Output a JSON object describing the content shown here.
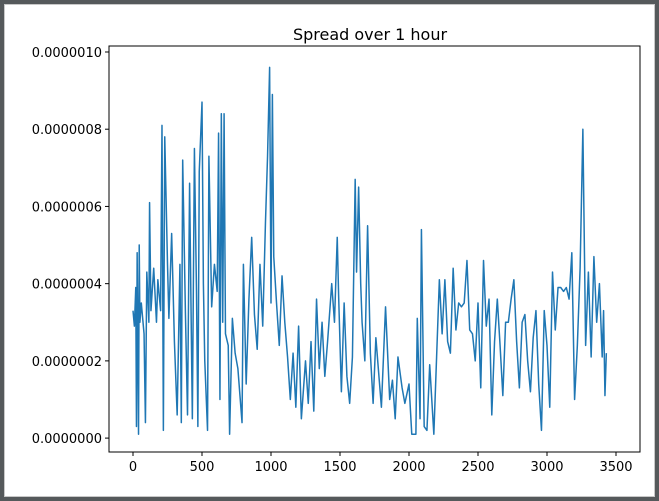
{
  "chart_data": {
    "type": "line",
    "title": "Spread over 1 hour",
    "color": "#1f77b4",
    "x": [
      0,
      10,
      20,
      25,
      30,
      40,
      45,
      50,
      60,
      80,
      90,
      100,
      115,
      120,
      130,
      150,
      170,
      180,
      200,
      210,
      220,
      230,
      250,
      260,
      280,
      300,
      320,
      340,
      350,
      360,
      380,
      395,
      410,
      420,
      430,
      445,
      460,
      470,
      480,
      500,
      510,
      520,
      540,
      550,
      570,
      590,
      610,
      620,
      630,
      640,
      650,
      660,
      670,
      690,
      700,
      720,
      740,
      760,
      790,
      800,
      820,
      840,
      860,
      880,
      900,
      920,
      940,
      960,
      975,
      990,
      1000,
      1010,
      1020,
      1040,
      1060,
      1080,
      1100,
      1120,
      1140,
      1160,
      1180,
      1200,
      1220,
      1250,
      1270,
      1290,
      1310,
      1330,
      1350,
      1370,
      1390,
      1410,
      1440,
      1460,
      1480,
      1490,
      1510,
      1530,
      1550,
      1570,
      1590,
      1610,
      1620,
      1635,
      1650,
      1660,
      1680,
      1700,
      1720,
      1740,
      1760,
      1800,
      1830,
      1860,
      1880,
      1900,
      1920,
      1950,
      1970,
      2000,
      2020,
      2050,
      2060,
      2080,
      2090,
      2110,
      2130,
      2150,
      2180,
      2200,
      2220,
      2240,
      2260,
      2280,
      2300,
      2320,
      2340,
      2360,
      2380,
      2400,
      2420,
      2440,
      2460,
      2480,
      2500,
      2520,
      2540,
      2560,
      2580,
      2600,
      2620,
      2640,
      2660,
      2680,
      2700,
      2720,
      2740,
      2760,
      2780,
      2800,
      2820,
      2840,
      2860,
      2880,
      2900,
      2920,
      2940,
      2960,
      2980,
      3000,
      3020,
      3040,
      3060,
      3080,
      3100,
      3120,
      3140,
      3160,
      3180,
      3200,
      3220,
      3240,
      3260,
      3280,
      3300,
      3320,
      3340,
      3360,
      3380,
      3400,
      3410,
      3420,
      3430
    ],
    "values": [
      3.3e-07,
      2.9e-07,
      3.9e-07,
      3e-08,
      4.8e-07,
      1e-08,
      5e-07,
      3e-07,
      3.5e-07,
      2.7e-07,
      4e-08,
      4.3e-07,
      3e-07,
      6.1e-07,
      3.3e-07,
      4.4e-07,
      3e-07,
      4.1e-07,
      3.3e-07,
      8.1e-07,
      2e-08,
      7.8e-07,
      4.5e-07,
      3.1e-07,
      5.3e-07,
      2.5e-07,
      6e-08,
      4.5e-07,
      4e-08,
      7.2e-07,
      3.2e-07,
      6e-08,
      6.6e-07,
      3.5e-07,
      5e-08,
      7.5e-07,
      3.8e-07,
      3e-08,
      6.9e-07,
      8.7e-07,
      4e-07,
      2e-07,
      2e-08,
      7.3e-07,
      3.4e-07,
      4.5e-07,
      3.8e-07,
      7.9e-07,
      1e-07,
      8.4e-07,
      3e-07,
      8.4e-07,
      2.7e-07,
      2.4e-07,
      1e-08,
      3.1e-07,
      2.2e-07,
      1.8e-07,
      4e-08,
      4.5e-07,
      1.4e-07,
      3.6e-07,
      5.2e-07,
      3.2e-07,
      2.3e-07,
      4.5e-07,
      2.9e-07,
      5.6e-07,
      7.3e-07,
      9.6e-07,
      3.5e-07,
      8.9e-07,
      4.7e-07,
      3.5e-07,
      2.4e-07,
      4.2e-07,
      3e-07,
      2.1e-07,
      1e-07,
      2.2e-07,
      8e-08,
      2.9e-07,
      5e-08,
      2e-07,
      9e-08,
      2.5e-07,
      7e-08,
      3.6e-07,
      1.8e-07,
      3e-07,
      1.6e-07,
      2.5e-07,
      4e-07,
      3e-07,
      5.2e-07,
      3.7e-07,
      1.2e-07,
      3.5e-07,
      1.6e-07,
      9e-08,
      2.1e-07,
      6.7e-07,
      4.3e-07,
      6.5e-07,
      4e-07,
      3e-07,
      2e-07,
      5.5e-07,
      2.2e-07,
      9e-08,
      2.6e-07,
      8e-08,
      3.4e-07,
      1e-07,
      1.5e-07,
      5e-08,
      2.1e-07,
      1.3e-07,
      9e-08,
      1.4e-07,
      1e-08,
      1e-08,
      3.1e-07,
      5e-08,
      5.4e-07,
      3e-08,
      2e-08,
      1.9e-07,
      1e-08,
      2.1e-07,
      4.1e-07,
      2.7e-07,
      4.1e-07,
      2.5e-07,
      2.2e-07,
      4.4e-07,
      2.8e-07,
      3.5e-07,
      3.4e-07,
      3.5e-07,
      4.6e-07,
      2.8e-07,
      2.7e-07,
      2e-07,
      3.5e-07,
      1.3e-07,
      4.6e-07,
      2.9e-07,
      3.6e-07,
      6e-08,
      2.5e-07,
      3.6e-07,
      2.4e-07,
      1.1e-07,
      3e-07,
      3e-07,
      3.6e-07,
      4.1e-07,
      2.5e-07,
      1.3e-07,
      3e-07,
      3.2e-07,
      2e-07,
      1.2e-07,
      2.6e-07,
      3.3e-07,
      1.4e-07,
      2e-08,
      3.3e-07,
      2.4e-07,
      8e-08,
      4.3e-07,
      2.8e-07,
      3.9e-07,
      3.9e-07,
      3.8e-07,
      3.9e-07,
      3.6e-07,
      4.8e-07,
      1e-07,
      2.4e-07,
      4.4e-07,
      8e-07,
      2.4e-07,
      4.3e-07,
      2.1e-07,
      4.7e-07,
      3e-07,
      4e-07,
      2.1e-07,
      3.3e-07,
      1.1e-07,
      2.2e-07
    ],
    "xlim": [
      -174,
      3674
    ],
    "xticks": [
      0,
      500,
      1000,
      1500,
      2000,
      2500,
      3000,
      3500
    ],
    "ylim": [
      -3.6e-08,
      1.0155e-06
    ],
    "yticks": [
      {
        "value": 0,
        "label": "0.0000000"
      },
      {
        "value": 2e-07,
        "label": "0.0000002"
      },
      {
        "value": 4e-07,
        "label": "0.0000004"
      },
      {
        "value": 6e-07,
        "label": "0.0000006"
      },
      {
        "value": 8e-07,
        "label": "0.0000008"
      },
      {
        "value": 1e-06,
        "label": "0.0000010"
      }
    ]
  }
}
